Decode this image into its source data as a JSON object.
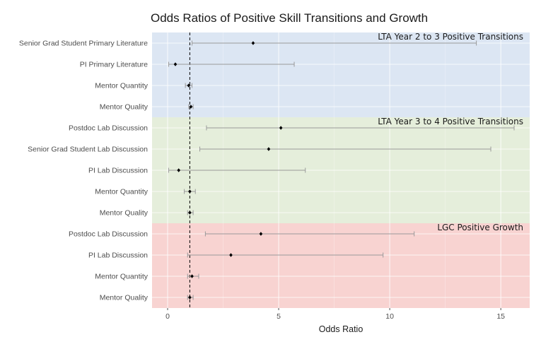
{
  "chart_data": {
    "type": "forest",
    "title": "Odds Ratios of Positive Skill Transitions and Growth",
    "xlabel": "Odds Ratio",
    "ylabel": "",
    "xlim": [
      -0.7,
      16.3
    ],
    "xticks": [
      0,
      5,
      10,
      15
    ],
    "reference_line": 1,
    "grid": true,
    "panels": [
      {
        "label": "LTA Year 2 to 3 Positive Transitions",
        "color": "#dce6f3",
        "rows": [
          {
            "label": "Senior Grad Student Primary Literature",
            "or": 3.85,
            "lo": 1.1,
            "hi": 13.9
          },
          {
            "label": "PI Primary Literature",
            "or": 0.35,
            "lo": 0.05,
            "hi": 5.7
          },
          {
            "label": "Mentor Quantity",
            "or": 0.95,
            "lo": 0.8,
            "hi": 1.1
          },
          {
            "label": "Mentor Quality",
            "or": 1.05,
            "lo": 0.95,
            "hi": 1.15
          }
        ]
      },
      {
        "label": "LTA Year 3 to 4 Positive Transitions",
        "color": "#e5eedb",
        "rows": [
          {
            "label": "Postdoc Lab Discussion",
            "or": 5.1,
            "lo": 1.75,
            "hi": 15.6
          },
          {
            "label": "Senior Grad Student Lab Discussion",
            "or": 4.55,
            "lo": 1.45,
            "hi": 14.55
          },
          {
            "label": "PI Lab Discussion",
            "or": 0.5,
            "lo": 0.05,
            "hi": 6.2
          },
          {
            "label": "Mentor Quantity",
            "or": 1.0,
            "lo": 0.75,
            "hi": 1.25
          },
          {
            "label": "Mentor Quality",
            "or": 1.0,
            "lo": 0.9,
            "hi": 1.15
          }
        ]
      },
      {
        "label": "LGC Positive Growth",
        "color": "#f8d3d1",
        "rows": [
          {
            "label": "Postdoc Lab Discussion",
            "or": 4.2,
            "lo": 1.7,
            "hi": 11.1
          },
          {
            "label": "PI Lab Discussion",
            "or": 2.85,
            "lo": 0.9,
            "hi": 9.7
          },
          {
            "label": "Mentor Quantity",
            "or": 1.1,
            "lo": 0.9,
            "hi": 1.4
          },
          {
            "label": "Mentor Quality",
            "or": 1.0,
            "lo": 0.9,
            "hi": 1.15
          }
        ]
      }
    ]
  }
}
